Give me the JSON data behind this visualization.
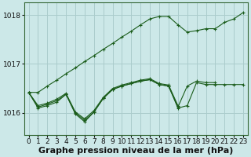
{
  "background_color": "#cce8e8",
  "grid_color": "#aacccc",
  "line_color": "#1a5c1a",
  "xlabel": "Graphe pression niveau de la mer (hPa)",
  "xlabel_fontsize": 8,
  "tick_fontsize": 6.5,
  "ylim": [
    1015.55,
    1018.25
  ],
  "xlim": [
    -0.5,
    23.5
  ],
  "yticks": [
    1016,
    1017,
    1018
  ],
  "xticks": [
    0,
    1,
    2,
    3,
    4,
    5,
    6,
    7,
    8,
    9,
    10,
    11,
    12,
    13,
    14,
    15,
    16,
    17,
    18,
    19,
    20,
    21,
    22,
    23
  ],
  "series": [
    [
      1016.42,
      1016.1,
      1016.15,
      1016.22,
      1016.38,
      1015.98,
      1015.82,
      1016.02,
      1016.3,
      1016.48,
      1016.55,
      1016.6,
      1016.65,
      1016.68,
      1016.58,
      1016.55,
      1016.1,
      1016.15,
      1016.62,
      1016.58,
      1016.58,
      1016.58,
      1016.58,
      1016.58
    ],
    [
      1016.42,
      1016.12,
      1016.18,
      1016.25,
      1016.38,
      1016.0,
      1015.85,
      1016.02,
      1016.3,
      1016.48,
      1016.55,
      1016.6,
      1016.65,
      1016.68,
      1016.58,
      1016.55,
      1016.12,
      1016.55,
      1016.65,
      1016.62,
      1016.62,
      null,
      null,
      null
    ],
    [
      1016.42,
      1016.15,
      1016.2,
      1016.28,
      1016.4,
      1016.02,
      1015.88,
      1016.05,
      1016.32,
      1016.5,
      1016.57,
      1016.62,
      1016.67,
      1016.7,
      1016.6,
      1016.57,
      1016.15,
      null,
      null,
      null,
      null,
      null,
      null,
      null
    ],
    [
      1016.42,
      1016.42,
      1016.55,
      1016.67,
      1016.8,
      1016.92,
      1017.05,
      1017.17,
      1017.3,
      1017.42,
      1017.55,
      1017.67,
      1017.8,
      1017.92,
      1017.97,
      1017.97,
      1017.8,
      1017.65,
      1017.68,
      1017.72,
      1017.72,
      1017.85,
      1017.92,
      1018.05
    ]
  ]
}
